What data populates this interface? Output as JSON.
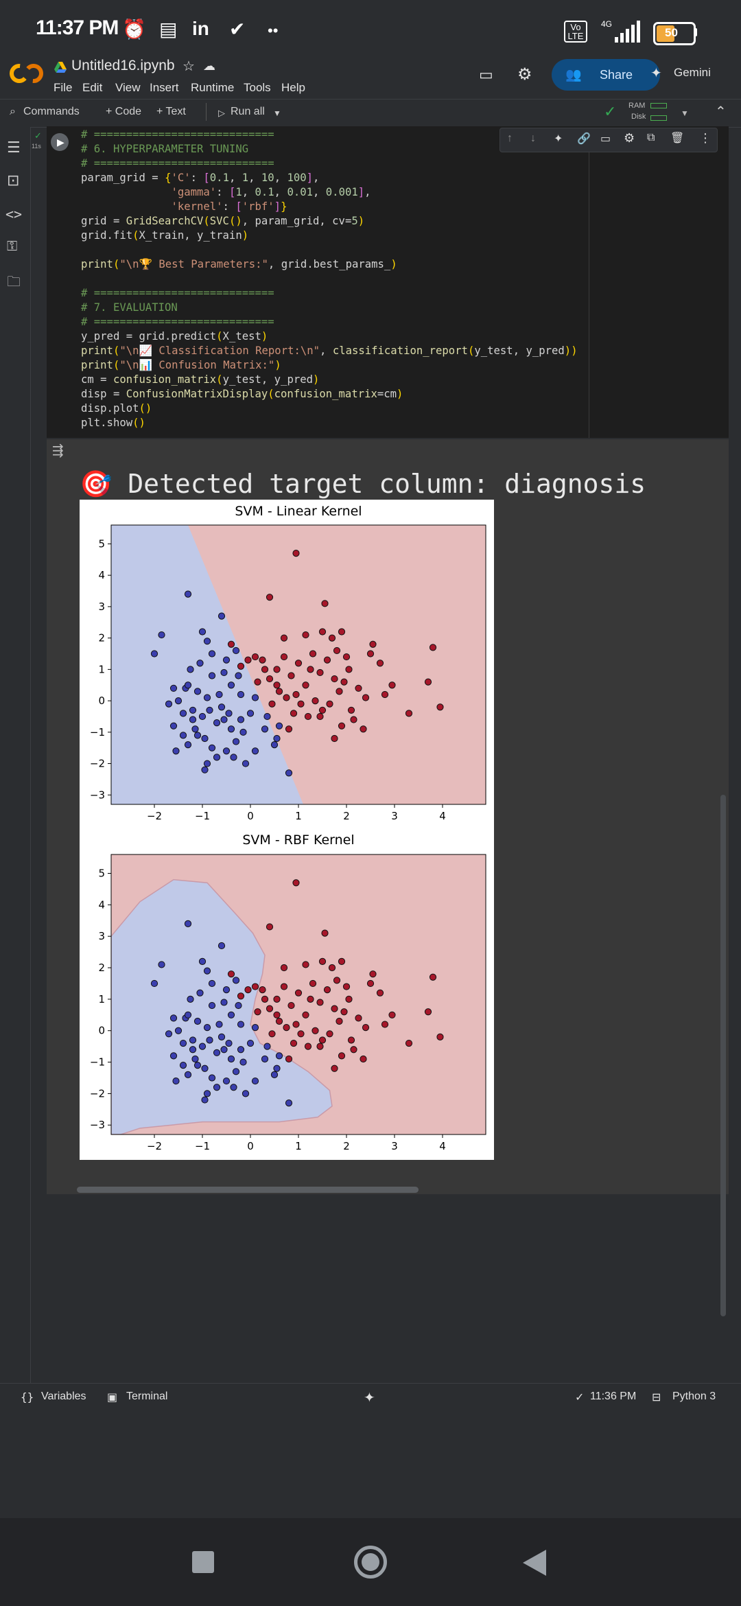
{
  "status_bar": {
    "time": "11:37 PM",
    "network": "4G",
    "volte": "Vo LTE",
    "battery": "50"
  },
  "header": {
    "notebook_title": "Untitled16.ipynb",
    "menu": [
      "File",
      "Edit",
      "View",
      "Insert",
      "Runtime",
      "Tools",
      "Help"
    ],
    "share_label": "Share",
    "gemini_label": "Gemini"
  },
  "toolbar": {
    "commands_label": "Commands",
    "code_label": "+ Code",
    "text_label": "+ Text",
    "run_all_label": "Run all",
    "ram_label": "RAM",
    "disk_label": "Disk"
  },
  "cell": {
    "exec_time": "11s",
    "code_lines": [
      "# ============================",
      "# 6. HYPERPARAMETER TUNING",
      "# ============================",
      "param_grid = {'C': [0.1, 1, 10, 100],",
      "              'gamma': [1, 0.1, 0.01, 0.001],",
      "              'kernel': ['rbf']}",
      "grid = GridSearchCV(SVC(), param_grid, cv=5)",
      "grid.fit(X_train, y_train)",
      "",
      "print(\"\\n🏆 Best Parameters:\", grid.best_params_)",
      "",
      "# ============================",
      "# 7. EVALUATION",
      "# ============================",
      "y_pred = grid.predict(X_test)",
      "print(\"\\n📈 Classification Report:\\n\", classification_report(y_test, y_pred))",
      "print(\"\\n📊 Confusion Matrix:\")",
      "cm = confusion_matrix(y_test, y_pred)",
      "disp = ConfusionMatrixDisplay(confusion_matrix=cm)",
      "disp.plot()",
      "plt.show()"
    ]
  },
  "output": {
    "detected_text": "🎯 Detected target column: diagnosis"
  },
  "chart_data": [
    {
      "type": "scatter",
      "title": "SVM - Linear Kernel",
      "xlim": [
        -2.9,
        4.9
      ],
      "ylim": [
        -3.3,
        5.6
      ],
      "x_ticks": [
        -2,
        -1,
        0,
        1,
        2,
        3,
        4
      ],
      "y_ticks": [
        -3,
        -2,
        -1,
        0,
        1,
        2,
        3,
        4,
        5
      ],
      "decision_boundary": "linear",
      "background_colors": {
        "class0": "#c0c9e8",
        "class1": "#e6bcbc"
      },
      "series": [
        {
          "color": "#3b3fae",
          "points": [
            [
              -1.3,
              3.4
            ],
            [
              -1.85,
              2.1
            ],
            [
              -1.0,
              2.2
            ],
            [
              -0.9,
              1.9
            ],
            [
              -0.6,
              2.7
            ],
            [
              -0.8,
              1.5
            ],
            [
              -0.5,
              1.3
            ],
            [
              -1.25,
              1.0
            ],
            [
              -1.35,
              0.4
            ],
            [
              -1.6,
              0.4
            ],
            [
              -1.5,
              0.0
            ],
            [
              -1.2,
              -0.3
            ],
            [
              -1.6,
              -0.8
            ],
            [
              -1.55,
              -1.6
            ],
            [
              -1.3,
              -1.4
            ],
            [
              -1.1,
              -1.1
            ],
            [
              -0.9,
              -2.0
            ],
            [
              -0.95,
              -2.2
            ],
            [
              -0.7,
              -1.8
            ],
            [
              -0.5,
              -1.6
            ],
            [
              -0.3,
              -1.3
            ],
            [
              -0.1,
              -2.0
            ],
            [
              0.1,
              -1.6
            ],
            [
              -0.4,
              -0.9
            ],
            [
              -0.7,
              -0.7
            ],
            [
              -1.0,
              -0.5
            ],
            [
              -1.3,
              0.5
            ],
            [
              -0.8,
              0.8
            ],
            [
              -0.4,
              0.5
            ],
            [
              -0.2,
              0.2
            ],
            [
              0.1,
              0.1
            ],
            [
              -0.9,
              0.1
            ],
            [
              -0.6,
              -0.2
            ],
            [
              -0.2,
              -0.6
            ],
            [
              0.0,
              -0.4
            ],
            [
              0.3,
              -0.9
            ],
            [
              0.5,
              -1.4
            ],
            [
              0.55,
              -1.2
            ],
            [
              0.6,
              -0.8
            ],
            [
              -1.05,
              1.2
            ],
            [
              -0.3,
              1.6
            ],
            [
              -1.4,
              -1.1
            ],
            [
              -0.8,
              -1.5
            ],
            [
              -0.25,
              0.8
            ],
            [
              -1.2,
              -0.6
            ],
            [
              -1.4,
              -0.4
            ],
            [
              -0.55,
              0.9
            ],
            [
              -0.85,
              -0.3
            ],
            [
              -0.45,
              -0.4
            ],
            [
              -0.15,
              -1.0
            ],
            [
              0.35,
              -0.5
            ],
            [
              -1.7,
              -0.1
            ],
            [
              -1.1,
              0.3
            ],
            [
              -0.65,
              0.2
            ],
            [
              -2.0,
              1.5
            ],
            [
              -0.95,
              -1.2
            ],
            [
              -0.35,
              -1.8
            ],
            [
              0.8,
              -2.3
            ],
            [
              -0.55,
              -0.6
            ],
            [
              -1.15,
              -0.9
            ]
          ]
        },
        {
          "color": "#a6172a",
          "points": [
            [
              0.95,
              4.7
            ],
            [
              0.4,
              3.3
            ],
            [
              1.55,
              3.1
            ],
            [
              0.7,
              2.0
            ],
            [
              1.15,
              2.1
            ],
            [
              1.5,
              2.2
            ],
            [
              1.7,
              2.0
            ],
            [
              1.9,
              2.2
            ],
            [
              2.55,
              1.8
            ],
            [
              2.0,
              1.4
            ],
            [
              2.5,
              1.5
            ],
            [
              2.7,
              1.2
            ],
            [
              3.8,
              1.7
            ],
            [
              3.7,
              0.6
            ],
            [
              2.95,
              0.5
            ],
            [
              2.8,
              0.2
            ],
            [
              3.3,
              -0.4
            ],
            [
              3.95,
              -0.2
            ],
            [
              2.25,
              0.4
            ],
            [
              2.1,
              -0.3
            ],
            [
              1.9,
              -0.8
            ],
            [
              1.75,
              -1.2
            ],
            [
              2.15,
              -0.6
            ],
            [
              1.5,
              -0.3
            ],
            [
              1.2,
              -0.5
            ],
            [
              0.9,
              -0.4
            ],
            [
              0.6,
              0.3
            ],
            [
              0.4,
              0.7
            ],
            [
              0.3,
              1.0
            ],
            [
              0.1,
              1.4
            ],
            [
              -0.05,
              1.3
            ],
            [
              0.25,
              1.3
            ],
            [
              0.55,
              1.0
            ],
            [
              0.85,
              0.8
            ],
            [
              1.15,
              0.5
            ],
            [
              1.45,
              0.9
            ],
            [
              1.75,
              0.7
            ],
            [
              2.05,
              1.0
            ],
            [
              1.85,
              0.3
            ],
            [
              1.35,
              0.0
            ],
            [
              1.0,
              1.2
            ],
            [
              0.7,
              1.4
            ],
            [
              1.3,
              1.5
            ],
            [
              1.6,
              1.3
            ],
            [
              0.45,
              -0.1
            ],
            [
              0.15,
              0.6
            ],
            [
              -0.4,
              1.8
            ],
            [
              -0.2,
              1.1
            ],
            [
              0.8,
              -0.9
            ],
            [
              1.05,
              -0.1
            ],
            [
              1.65,
              -0.1
            ],
            [
              2.35,
              -0.9
            ],
            [
              1.25,
              1.0
            ],
            [
              0.95,
              0.2
            ],
            [
              0.55,
              0.5
            ],
            [
              1.95,
              0.6
            ],
            [
              2.4,
              0.1
            ],
            [
              0.75,
              0.1
            ],
            [
              1.45,
              -0.5
            ],
            [
              1.8,
              1.6
            ]
          ]
        }
      ]
    },
    {
      "type": "scatter",
      "title": "SVM - RBF Kernel",
      "xlim": [
        -2.9,
        4.9
      ],
      "ylim": [
        -3.3,
        5.6
      ],
      "x_ticks": [
        -2,
        -1,
        0,
        1,
        2,
        3,
        4
      ],
      "y_ticks": [
        -3,
        -2,
        -1,
        0,
        1,
        2,
        3,
        4,
        5
      ],
      "decision_boundary": "rbf",
      "background_colors": {
        "class0": "#c0c9e8",
        "class1": "#e6bcbc"
      }
    }
  ],
  "bottom_bar": {
    "variables_label": "Variables",
    "terminal_label": "Terminal",
    "last_run_time": "11:36 PM",
    "runtime_label": "Python 3"
  }
}
